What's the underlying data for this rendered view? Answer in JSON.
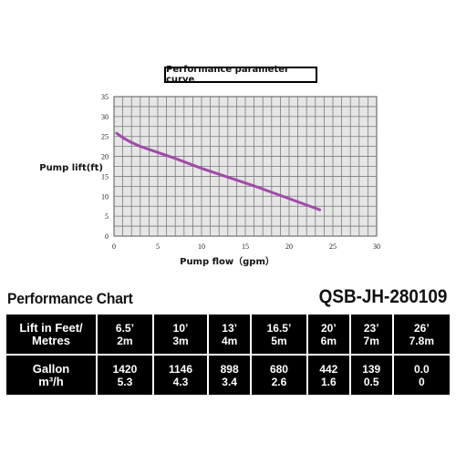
{
  "header": {
    "title": "Performance parameter curve"
  },
  "chart_data": {
    "type": "line",
    "title": "Performance parameter curve",
    "xlabel": "Pump flow（gpm）",
    "ylabel": "Pump lift(ft)",
    "xlim": [
      0,
      30
    ],
    "ylim": [
      0,
      35
    ],
    "xticks": [
      "0",
      "5",
      "10",
      "15",
      "20",
      "25",
      "30"
    ],
    "yticks": [
      "0",
      "5",
      "10",
      "15",
      "20",
      "25",
      "30",
      "35"
    ],
    "grid": true,
    "series": [
      {
        "x": [
          0.3,
          1,
          2,
          3,
          5,
          7,
          10,
          13,
          16,
          19,
          21,
          23.5
        ],
        "y": [
          25.8,
          24.7,
          23.5,
          22.5,
          21.0,
          19.5,
          17.0,
          14.8,
          12.6,
          10.2,
          8.6,
          6.6
        ]
      }
    ],
    "colors": {
      "line": "#a04aa8",
      "plot_bg": "#e6e6e6",
      "grid": "#7a7a7a"
    }
  },
  "performance": {
    "title": "Performance Chart",
    "model": "QSB-JH-280109",
    "rows": [
      {
        "label": [
          "Lift in Feet/",
          "Metres"
        ],
        "cells": [
          [
            "6.5’",
            "2m"
          ],
          [
            "10’",
            "3m"
          ],
          [
            "13’",
            "4m"
          ],
          [
            "16.5’",
            "5m"
          ],
          [
            "20’",
            "6m"
          ],
          [
            "23’",
            "7m"
          ],
          [
            "26’",
            "7.8m"
          ]
        ]
      },
      {
        "label": [
          "Gallon",
          "m³/h"
        ],
        "cells": [
          [
            "1420",
            "5.3"
          ],
          [
            "1146",
            "4.3"
          ],
          [
            "898",
            "3.4"
          ],
          [
            "680",
            "2.6"
          ],
          [
            "442",
            "1.6"
          ],
          [
            "139",
            "0.5"
          ],
          [
            "0.0",
            "0"
          ]
        ]
      }
    ]
  }
}
